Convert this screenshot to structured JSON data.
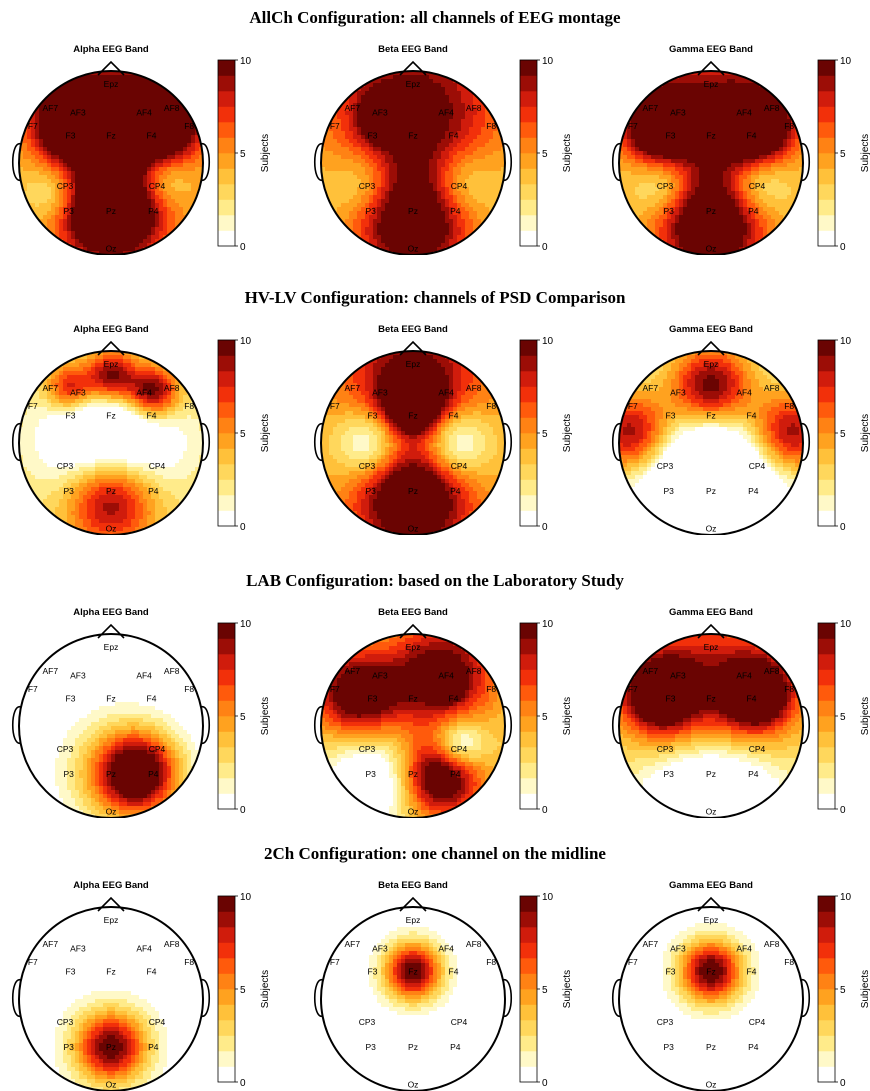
{
  "chart_data": {
    "type": "heatmap",
    "colorbar": {
      "label": "Subjects",
      "min": 0,
      "max": 10,
      "ticks": [
        0,
        5,
        10
      ],
      "colors": [
        "#ffffff",
        "#fff9c8",
        "#ffeb8a",
        "#ffd75c",
        "#ffc13a",
        "#ffa21f",
        "#ff8214",
        "#ff5a0c",
        "#f2300a",
        "#d01c0c",
        "#9c0d06",
        "#6a0402"
      ]
    },
    "electrodes": [
      {
        "name": "Epz",
        "pos": [
          0,
          -0.86
        ]
      },
      {
        "name": "AF7",
        "pos": [
          -0.66,
          -0.6
        ]
      },
      {
        "name": "AF3",
        "pos": [
          -0.36,
          -0.55
        ]
      },
      {
        "name": "AF4",
        "pos": [
          0.36,
          -0.55
        ]
      },
      {
        "name": "AF8",
        "pos": [
          0.66,
          -0.6
        ]
      },
      {
        "name": "F7",
        "pos": [
          -0.85,
          -0.4
        ]
      },
      {
        "name": "F3",
        "pos": [
          -0.44,
          -0.3
        ]
      },
      {
        "name": "Fz",
        "pos": [
          0,
          -0.3
        ]
      },
      {
        "name": "F4",
        "pos": [
          0.44,
          -0.3
        ]
      },
      {
        "name": "F8",
        "pos": [
          0.85,
          -0.4
        ]
      },
      {
        "name": "CP3",
        "pos": [
          -0.5,
          0.25
        ]
      },
      {
        "name": "CP4",
        "pos": [
          0.5,
          0.25
        ]
      },
      {
        "name": "P3",
        "pos": [
          -0.46,
          0.52
        ]
      },
      {
        "name": "Pz",
        "pos": [
          0,
          0.52
        ]
      },
      {
        "name": "P4",
        "pos": [
          0.46,
          0.52
        ]
      },
      {
        "name": "Oz",
        "pos": [
          0,
          0.93
        ]
      }
    ],
    "configurations": [
      {
        "title": "AllCh Configuration: all channels of EEG montage",
        "bands": [
          {
            "name": "Alpha EEG Band",
            "sources": [
              {
                "pos": [
                  -0.42,
                  -0.45
                ],
                "value": 9.2,
                "spread": 0.28
              },
              {
                "pos": [
                  0.55,
                  -0.45
                ],
                "value": 9,
                "spread": 0.3
              },
              {
                "pos": [
                  0,
                  -0.6
                ],
                "value": 6,
                "spread": 0.5
              },
              {
                "pos": [
                  0,
                  0.55
                ],
                "value": 8.6,
                "spread": 0.33
              },
              {
                "pos": [
                  0,
                  0.35
                ],
                "value": 5,
                "spread": 0.5
              },
              {
                "pos": [
                  -0.6,
                  0.3
                ],
                "value": -4,
                "spread": 0.24
              },
              {
                "pos": [
                  0.55,
                  0.18
                ],
                "value": -4,
                "spread": 0.22
              }
            ],
            "base": 3.6
          },
          {
            "name": "Beta EEG Band",
            "sources": [
              {
                "pos": [
                  0,
                  -0.55
                ],
                "value": 7.8,
                "spread": 0.7
              },
              {
                "pos": [
                  0,
                  0.65
                ],
                "value": 8.6,
                "spread": 0.45
              },
              {
                "pos": [
                  -0.3,
                  -0.5
                ],
                "value": 9,
                "spread": 0.16
              },
              {
                "pos": [
                  -0.5,
                  0.22
                ],
                "value": -4,
                "spread": 0.28
              },
              {
                "pos": [
                  0.5,
                  0.22
                ],
                "value": -4,
                "spread": 0.28
              }
            ],
            "base": 2.6
          },
          {
            "name": "Gamma EEG Band",
            "sources": [
              {
                "pos": [
                  -0.55,
                  -0.4
                ],
                "value": 9.2,
                "spread": 0.26
              },
              {
                "pos": [
                  0.5,
                  -0.4
                ],
                "value": 9.2,
                "spread": 0.26
              },
              {
                "pos": [
                  0,
                  -0.5
                ],
                "value": 7,
                "spread": 0.6
              },
              {
                "pos": [
                  0,
                  0.7
                ],
                "value": 9.2,
                "spread": 0.4
              },
              {
                "pos": [
                  -0.5,
                  0.22
                ],
                "value": -4,
                "spread": 0.25
              },
              {
                "pos": [
                  0.5,
                  0.22
                ],
                "value": -4,
                "spread": 0.25
              }
            ],
            "base": 3
          }
        ]
      },
      {
        "title": "HV-LV Configuration: channels of PSD Comparison",
        "bands": [
          {
            "name": "Alpha EEG Band",
            "sources": [
              {
                "pos": [
                  0,
                  -0.72
                ],
                "value": 8.6,
                "spread": 0.2
              },
              {
                "pos": [
                  0.45,
                  -0.55
                ],
                "value": 9,
                "spread": 0.2
              },
              {
                "pos": [
                  0,
                  0.6
                ],
                "value": 9,
                "spread": 0.35
              },
              {
                "pos": [
                  -0.45,
                  -0.6
                ],
                "value": 6.6,
                "spread": 0.18
              },
              {
                "pos": [
                  0,
                  0.0
                ],
                "value": -7,
                "spread": 0.55
              }
            ],
            "base": 3
          },
          {
            "name": "Beta EEG Band",
            "sources": [
              {
                "pos": [
                  0,
                  -0.42
                ],
                "value": 9.6,
                "spread": 0.2
              },
              {
                "pos": [
                  0,
                  0.6
                ],
                "value": 9,
                "spread": 0.42
              },
              {
                "pos": [
                  0,
                  -0.65
                ],
                "value": 6.5,
                "spread": 0.5
              },
              {
                "pos": [
                  -0.45,
                  0.0
                ],
                "value": -6,
                "spread": 0.28
              },
              {
                "pos": [
                  0.45,
                  0.0
                ],
                "value": -6,
                "spread": 0.28
              }
            ],
            "base": 4
          },
          {
            "name": "Gamma EEG Band",
            "sources": [
              {
                "pos": [
                  0,
                  -0.6
                ],
                "value": 9.4,
                "spread": 0.32
              },
              {
                "pos": [
                  -0.85,
                  -0.1
                ],
                "value": 8.5,
                "spread": 0.32
              },
              {
                "pos": [
                  0.85,
                  -0.1
                ],
                "value": 8.5,
                "spread": 0.32
              },
              {
                "pos": [
                  0,
                  0.4
                ],
                "value": -8,
                "spread": 0.55
              }
            ],
            "base": 1.4
          }
        ]
      },
      {
        "title": "LAB Configuration: based on the Laboratory Study",
        "bands": [
          {
            "name": "Alpha EEG Band",
            "sources": [
              {
                "pos": [
                  0.3,
                  0.52
                ],
                "value": 9.5,
                "spread": 0.3
              },
              {
                "pos": [
                  0.1,
                  0.5
                ],
                "value": 4.5,
                "spread": 0.45
              }
            ],
            "base": -0.6
          },
          {
            "name": "Beta EEG Band",
            "sources": [
              {
                "pos": [
                  -0.6,
                  -0.35
                ],
                "value": 8.6,
                "spread": 0.32
              },
              {
                "pos": [
                  0.3,
                  -0.55
                ],
                "value": 8,
                "spread": 0.4
              },
              {
                "pos": [
                  0.35,
                  -0.45
                ],
                "value": 9.6,
                "spread": 0.1
              },
              {
                "pos": [
                  0.3,
                  0.55
                ],
                "value": 9.2,
                "spread": 0.3
              },
              {
                "pos": [
                  -0.45,
                  0.6
                ],
                "value": -5,
                "spread": 0.36
              },
              {
                "pos": [
                  0.5,
                  0.2
                ],
                "value": -6,
                "spread": 0.2
              }
            ],
            "base": 3
          },
          {
            "name": "Gamma EEG Band",
            "sources": [
              {
                "pos": [
                  -0.55,
                  -0.35
                ],
                "value": 9.4,
                "spread": 0.27
              },
              {
                "pos": [
                  0.5,
                  -0.35
                ],
                "value": 9.8,
                "spread": 0.25
              },
              {
                "pos": [
                  0,
                  -0.4
                ],
                "value": 6.5,
                "spread": 0.7
              },
              {
                "pos": [
                  0,
                  0.8
                ],
                "value": -8,
                "spread": 0.5
              }
            ],
            "base": 2
          }
        ]
      },
      {
        "title": "2Ch Configuration: one channel on the midline",
        "bands": [
          {
            "name": "Alpha EEG Band",
            "sources": [
              {
                "pos": [
                  0,
                  0.52
                ],
                "value": 10,
                "spread": 0.28
              }
            ],
            "base": 0
          },
          {
            "name": "Beta EEG Band",
            "sources": [
              {
                "pos": [
                  0,
                  -0.3
                ],
                "value": 10.2,
                "spread": 0.22
              }
            ],
            "base": 0
          },
          {
            "name": "Gamma EEG Band",
            "sources": [
              {
                "pos": [
                  0,
                  -0.3
                ],
                "value": 10.4,
                "spread": 0.24
              }
            ],
            "base": 0
          }
        ]
      }
    ]
  }
}
